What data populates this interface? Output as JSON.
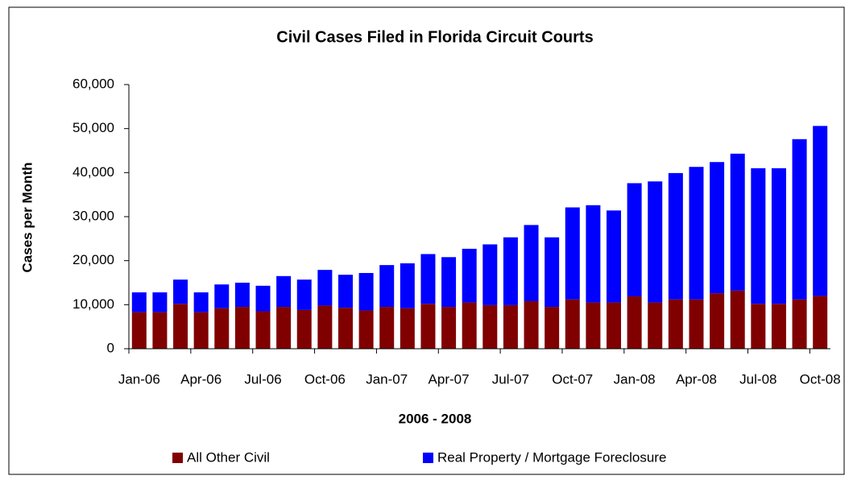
{
  "chart_data": {
    "type": "stacked_bar",
    "title": "Civil Cases Filed in Florida Circuit Courts",
    "y_label": "Cases per Month",
    "x_label": "2006 - 2008",
    "categories": [
      "Jan-06",
      null,
      null,
      "Apr-06",
      null,
      null,
      "Jul-06",
      null,
      null,
      "Oct-06",
      null,
      null,
      "Jan-07",
      null,
      null,
      "Apr-07",
      null,
      null,
      "Jul-07",
      null,
      null,
      "Oct-07",
      null,
      null,
      "Jan-08",
      null,
      null,
      "Apr-08",
      null,
      null,
      "Jul-08",
      null,
      null,
      "Oct-08"
    ],
    "series": [
      {
        "name": "All Other Civil",
        "color": "#800000",
        "values": [
          8300,
          8300,
          10200,
          8300,
          9200,
          9500,
          8500,
          9500,
          8800,
          9800,
          9300,
          8700,
          9500,
          9200,
          10200,
          9500,
          10500,
          9900,
          9900,
          10800,
          9500,
          11200,
          10500,
          10500,
          11900,
          10500,
          11200,
          11200,
          12600,
          13200,
          10200,
          10200,
          11200,
          12000
        ]
      },
      {
        "name": "Real Property / Mortgage Foreclosure",
        "color": "#0000ff",
        "values": [
          4500,
          4500,
          5500,
          4500,
          5400,
          5500,
          5800,
          7000,
          6900,
          8100,
          7500,
          8500,
          9500,
          10200,
          11300,
          11300,
          12200,
          13800,
          15400,
          17300,
          15800,
          20900,
          22100,
          20900,
          25700,
          27500,
          28700,
          30100,
          29800,
          31100,
          30800,
          30800,
          36400,
          38600
        ]
      }
    ],
    "ylim": [
      0,
      60000
    ],
    "yticks": [
      0,
      {
        "value": 10000,
        "label": "10,000"
      },
      {
        "value": 20000,
        "label": "20,000"
      },
      {
        "value": 30000,
        "label": "30,000"
      },
      {
        "value": 40000,
        "label": "40,000"
      },
      {
        "value": 50000,
        "label": "50,000"
      },
      {
        "value": 60000,
        "label": "60,000"
      }
    ],
    "grid": false,
    "legend": "bottom"
  }
}
